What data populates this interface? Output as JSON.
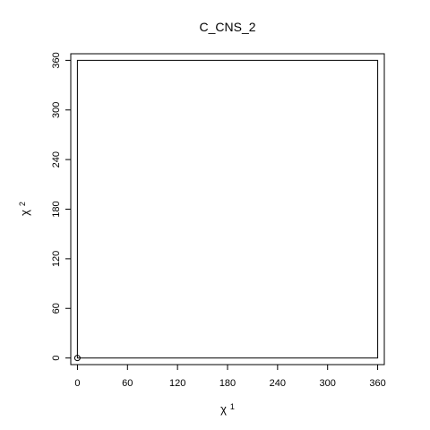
{
  "chart_data": {
    "type": "scatter",
    "title": "C_CNS_2",
    "xlabel": {
      "symbol": "χ",
      "index": "1"
    },
    "ylabel": {
      "symbol": "χ",
      "index": "2"
    },
    "xlim": [
      -8,
      368
    ],
    "ylim": [
      -8,
      368
    ],
    "x_ticks": [
      "0",
      "60",
      "120",
      "180",
      "240",
      "300",
      "360"
    ],
    "y_ticks": [
      "0",
      "60",
      "120",
      "180",
      "240",
      "300",
      "360"
    ],
    "grid": false,
    "series": [
      {
        "points": [
          {
            "x": 0,
            "y": 0
          }
        ]
      }
    ],
    "box_outline": [
      {
        "x": 0,
        "y": 0
      },
      {
        "x": 360,
        "y": 0
      },
      {
        "x": 360,
        "y": 360
      },
      {
        "x": 0,
        "y": 360
      }
    ],
    "colors": {
      "marks": "#000000",
      "background": "#ffffff"
    }
  }
}
